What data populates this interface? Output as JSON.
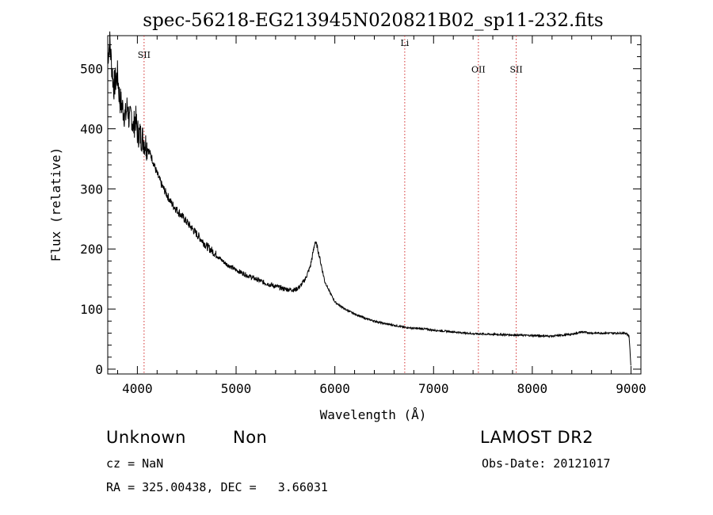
{
  "chart_data": {
    "type": "line",
    "title": "spec-56218-EG213945N020821B02_sp11-232.fits",
    "xlabel": "Wavelength (Å)",
    "ylabel": "Flux (relative)",
    "xlim": [
      3700,
      9100
    ],
    "ylim": [
      -8,
      555
    ],
    "xticks": [
      4000,
      5000,
      6000,
      7000,
      8000,
      9000
    ],
    "yticks": [
      0,
      100,
      200,
      300,
      400,
      500
    ],
    "xtick_labels": [
      "4000",
      "5000",
      "6000",
      "7000",
      "8000",
      "9000"
    ],
    "ytick_labels": [
      "0",
      "100",
      "200",
      "300",
      "400",
      "500"
    ],
    "series": [
      {
        "name": "spectrum",
        "x": [
          3700,
          3720,
          3740,
          3760,
          3780,
          3800,
          3820,
          3840,
          3860,
          3880,
          3900,
          3920,
          3940,
          3960,
          3980,
          4000,
          4050,
          4100,
          4150,
          4200,
          4250,
          4300,
          4350,
          4400,
          4450,
          4500,
          4550,
          4600,
          4650,
          4700,
          4750,
          4800,
          4850,
          4900,
          4950,
          5000,
          5100,
          5200,
          5300,
          5400,
          5500,
          5600,
          5650,
          5700,
          5750,
          5780,
          5800,
          5820,
          5840,
          5860,
          5880,
          5900,
          5950,
          6000,
          6100,
          6200,
          6300,
          6400,
          6500,
          6600,
          6700,
          6800,
          6900,
          7000,
          7200,
          7400,
          7600,
          7800,
          8000,
          8200,
          8400,
          8500,
          8600,
          8800,
          8950,
          8980,
          8990,
          9000
        ],
        "y": [
          520,
          545,
          505,
          470,
          480,
          490,
          450,
          440,
          430,
          420,
          440,
          410,
          425,
          400,
          420,
          395,
          385,
          370,
          350,
          325,
          305,
          290,
          275,
          265,
          255,
          245,
          235,
          225,
          215,
          205,
          198,
          190,
          182,
          175,
          170,
          165,
          157,
          150,
          143,
          138,
          133,
          132,
          138,
          150,
          170,
          195,
          212,
          205,
          190,
          175,
          160,
          145,
          128,
          112,
          100,
          92,
          85,
          80,
          76,
          73,
          70,
          68,
          67,
          65,
          62,
          59,
          58,
          57,
          56,
          55,
          58,
          62,
          60,
          60,
          60,
          55,
          30,
          0
        ]
      }
    ],
    "reference_lines": [
      {
        "label": "SII",
        "x": 4068,
        "label_y": 518
      },
      {
        "label": "Li",
        "x": 6708,
        "label_y": 538
      },
      {
        "label": "OII",
        "x": 7454,
        "label_y": 494
      },
      {
        "label": "SII",
        "x": 7837,
        "label_y": 494
      }
    ],
    "colors": {
      "spectrum": "#000000",
      "reference_line": "#d22d2d",
      "axis": "#000000"
    }
  },
  "info": {
    "class": "Unknown",
    "subclass": "Non",
    "survey": "LAMOST DR2",
    "redshift": "cz = NaN",
    "obs_date": "Obs-Date: 20121017",
    "coords": "RA = 325.00438, DEC =   3.66031"
  }
}
